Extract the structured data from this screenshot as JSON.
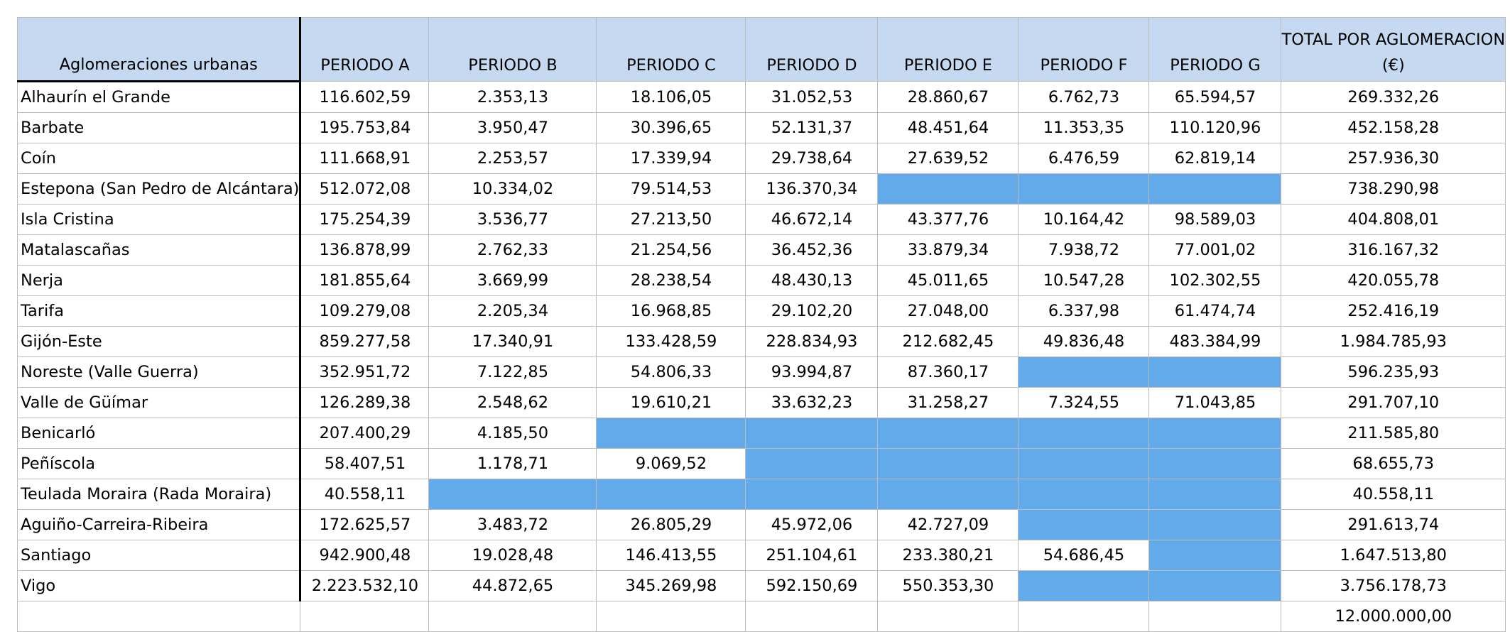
{
  "header": {
    "name": "Aglomeraciones urbanas",
    "periods": [
      "PERIODO A",
      "PERIODO B",
      "PERIODO C",
      "PERIODO D",
      "PERIODO E",
      "PERIODO F",
      "PERIODO G"
    ],
    "total_line1": "TOTAL POR AGLOMERACION",
    "total_line2": "(€)"
  },
  "rows": [
    {
      "name": "Alhaurín el Grande",
      "values": [
        "116.602,59",
        "2.353,13",
        "18.106,05",
        "31.052,53",
        "28.860,67",
        "6.762,73",
        "65.594,57"
      ],
      "total": "269.332,26"
    },
    {
      "name": "Barbate",
      "values": [
        "195.753,84",
        "3.950,47",
        "30.396,65",
        "52.131,37",
        "48.451,64",
        "11.353,35",
        "110.120,96"
      ],
      "total": "452.158,28"
    },
    {
      "name": "Coín",
      "values": [
        "111.668,91",
        "2.253,57",
        "17.339,94",
        "29.738,64",
        "27.639,52",
        "6.476,59",
        "62.819,14"
      ],
      "total": "257.936,30"
    },
    {
      "name": "Estepona (San Pedro de Alcántara)",
      "values": [
        "512.072,08",
        "10.334,02",
        "79.514,53",
        "136.370,34",
        null,
        null,
        null
      ],
      "total": "738.290,98"
    },
    {
      "name": "Isla Cristina",
      "values": [
        "175.254,39",
        "3.536,77",
        "27.213,50",
        "46.672,14",
        "43.377,76",
        "10.164,42",
        "98.589,03"
      ],
      "total": "404.808,01"
    },
    {
      "name": "Matalascañas",
      "values": [
        "136.878,99",
        "2.762,33",
        "21.254,56",
        "36.452,36",
        "33.879,34",
        "7.938,72",
        "77.001,02"
      ],
      "total": "316.167,32"
    },
    {
      "name": "Nerja",
      "values": [
        "181.855,64",
        "3.669,99",
        "28.238,54",
        "48.430,13",
        "45.011,65",
        "10.547,28",
        "102.302,55"
      ],
      "total": "420.055,78"
    },
    {
      "name": "Tarifa",
      "values": [
        "109.279,08",
        "2.205,34",
        "16.968,85",
        "29.102,20",
        "27.048,00",
        "6.337,98",
        "61.474,74"
      ],
      "total": "252.416,19"
    },
    {
      "name": "Gijón-Este",
      "values": [
        "859.277,58",
        "17.340,91",
        "133.428,59",
        "228.834,93",
        "212.682,45",
        "49.836,48",
        "483.384,99"
      ],
      "total": "1.984.785,93"
    },
    {
      "name": "Noreste (Valle Guerra)",
      "values": [
        "352.951,72",
        "7.122,85",
        "54.806,33",
        "93.994,87",
        "87.360,17",
        null,
        null
      ],
      "total": "596.235,93"
    },
    {
      "name": "Valle de Güímar",
      "values": [
        "126.289,38",
        "2.548,62",
        "19.610,21",
        "33.632,23",
        "31.258,27",
        "7.324,55",
        "71.043,85"
      ],
      "total": "291.707,10"
    },
    {
      "name": "Benicarló",
      "values": [
        "207.400,29",
        "4.185,50",
        null,
        null,
        null,
        null,
        null
      ],
      "total": "211.585,80"
    },
    {
      "name": "Peñíscola",
      "values": [
        "58.407,51",
        "1.178,71",
        "9.069,52",
        null,
        null,
        null,
        null
      ],
      "total": "68.655,73"
    },
    {
      "name": "Teulada Moraira (Rada Moraira)",
      "values": [
        "40.558,11",
        null,
        null,
        null,
        null,
        null,
        null
      ],
      "total": "40.558,11"
    },
    {
      "name": "Aguiño-Carreira-Ribeira",
      "values": [
        "172.625,57",
        "3.483,72",
        "26.805,29",
        "45.972,06",
        "42.727,09",
        null,
        null
      ],
      "total": "291.613,74"
    },
    {
      "name": "Santiago",
      "values": [
        "942.900,48",
        "19.028,48",
        "146.413,55",
        "251.104,61",
        "233.380,21",
        "54.686,45",
        null
      ],
      "total": "1.647.513,80"
    },
    {
      "name": "Vigo",
      "values": [
        "2.223.532,10",
        "44.872,65",
        "345.269,98",
        "592.150,69",
        "550.353,30",
        null,
        null
      ],
      "total": "3.756.178,73"
    }
  ],
  "grand_total": "12.000.000,00",
  "colors": {
    "header_bg": "#c5d9f1",
    "blank_cell": "#63aaeb"
  }
}
